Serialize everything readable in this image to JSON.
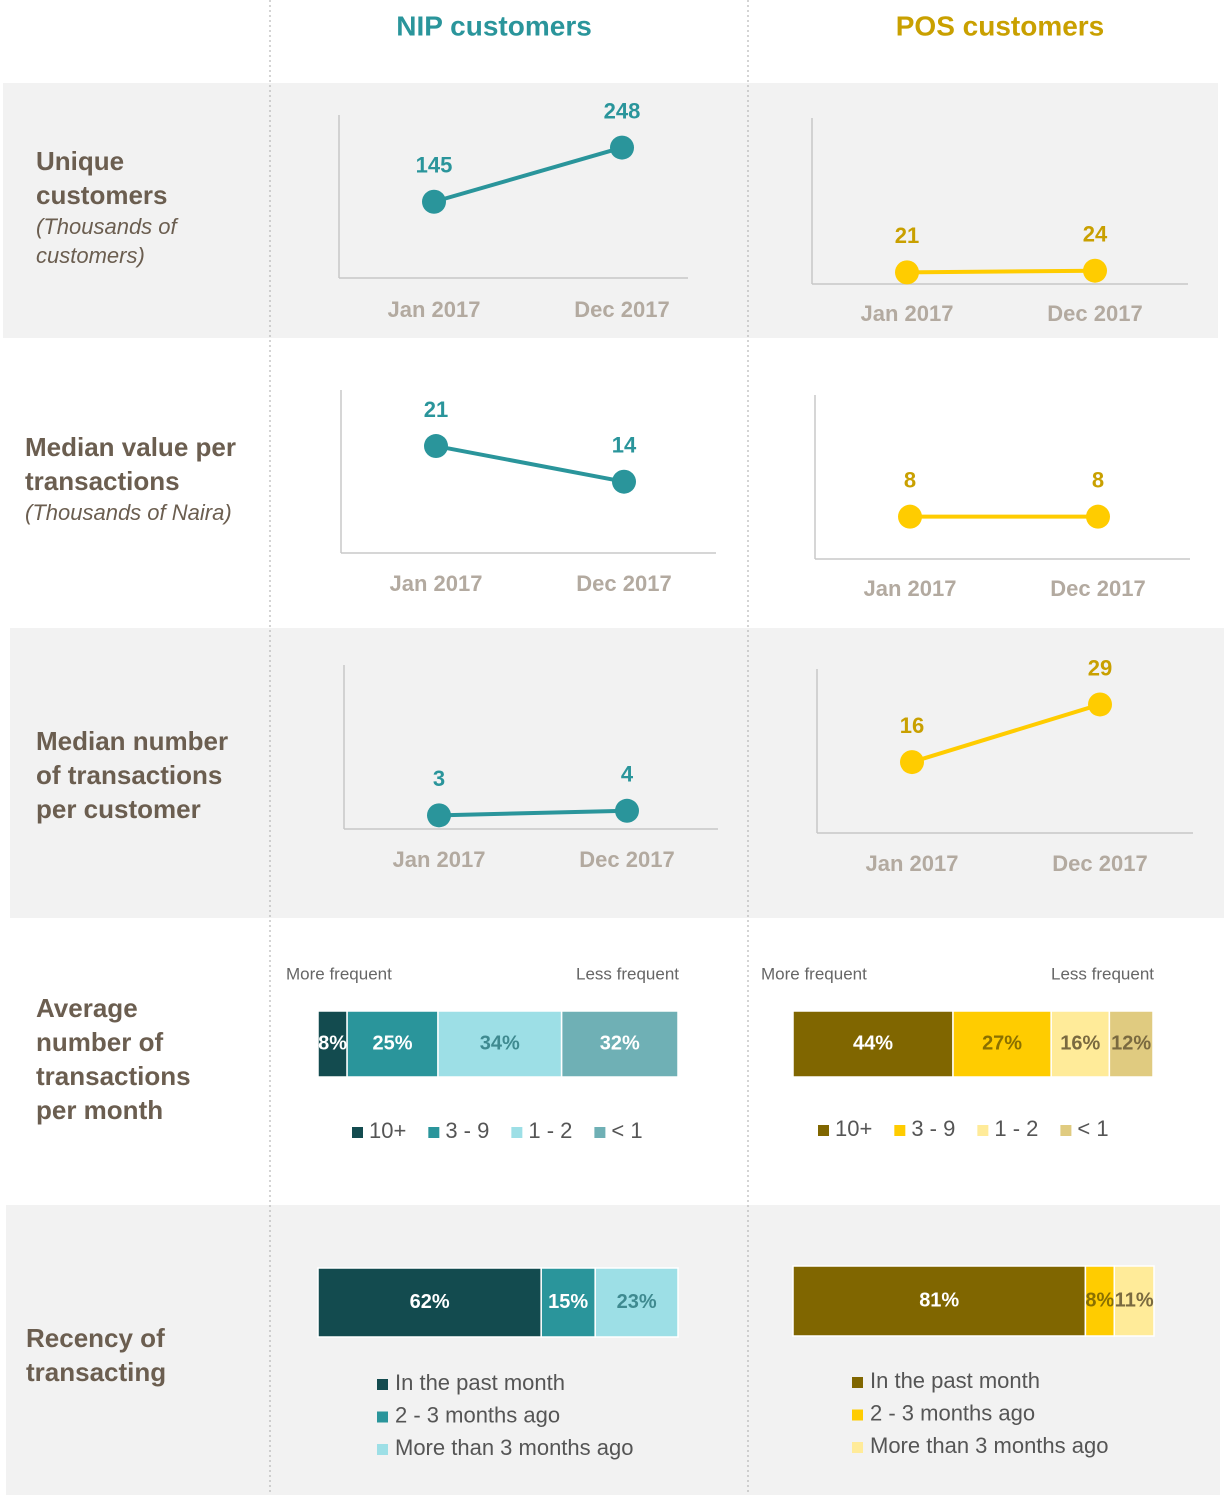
{
  "columns": [
    "NIP customers",
    "POS customers"
  ],
  "rows": [
    {
      "label": "Unique customers",
      "note": "(Thousands of customers)"
    },
    {
      "label": "Median value per transactions",
      "note": "(Thousands of Naira)"
    },
    {
      "label": "Median number of transactions per customer"
    },
    {
      "label": "Average number of transactions per month"
    },
    {
      "label": "Recency of transacting"
    }
  ],
  "chart_data": [
    {
      "type": "line",
      "categories": [
        "Jan 2017",
        "Dec 2017"
      ],
      "values": [
        145,
        248
      ],
      "color": "#2a959b",
      "label_color": "#2a959b",
      "ylim": [
        0,
        310
      ]
    },
    {
      "type": "line",
      "categories": [
        "Jan 2017",
        "Dec 2017"
      ],
      "values": [
        21,
        24
      ],
      "color": "#ffcc00",
      "label_color": "#c9a000",
      "ylim": [
        0,
        300
      ]
    },
    {
      "type": "line",
      "categories": [
        "Jan 2017",
        "Dec 2017"
      ],
      "values": [
        21,
        14
      ],
      "color": "#2a959b",
      "label_color": "#2a959b",
      "ylim": [
        0,
        32
      ]
    },
    {
      "type": "line",
      "categories": [
        "Jan 2017",
        "Dec 2017"
      ],
      "values": [
        8,
        8
      ],
      "color": "#ffcc00",
      "label_color": "#c9a000",
      "ylim": [
        0,
        31
      ]
    },
    {
      "type": "line",
      "categories": [
        "Jan 2017",
        "Dec 2017"
      ],
      "values": [
        3,
        4
      ],
      "color": "#2a959b",
      "label_color": "#2a959b",
      "ylim": [
        0,
        36
      ]
    },
    {
      "type": "line",
      "categories": [
        "Jan 2017",
        "Dec 2017"
      ],
      "values": [
        16,
        29
      ],
      "color": "#ffcc00",
      "label_color": "#c9a000",
      "ylim": [
        0,
        37
      ]
    },
    {
      "type": "stacked_bar",
      "annotations": [
        "More frequent",
        "Less frequent"
      ],
      "legend": "horizontal",
      "xlim": [
        0,
        99
      ],
      "series": [
        {
          "name": "10+",
          "color": "#134b4f",
          "label_color": "#ffffff",
          "values": [
            8
          ],
          "value_labels": [
            "8%"
          ]
        },
        {
          "name": "3 - 9",
          "color": "#2a959b",
          "label_color": "#ffffff",
          "values": [
            25
          ],
          "value_labels": [
            "25%"
          ]
        },
        {
          "name": "1 - 2",
          "color": "#9ddfe6",
          "label_color": "#3f8a90",
          "values": [
            34
          ],
          "value_labels": [
            "34%"
          ]
        },
        {
          "name": "< 1",
          "color": "#6fb0b5",
          "label_color": "#ffffff",
          "values": [
            32
          ],
          "value_labels": [
            "32%"
          ]
        }
      ]
    },
    {
      "type": "stacked_bar",
      "annotations": [
        "More frequent",
        "Less frequent"
      ],
      "legend": "horizontal",
      "xlim": [
        0,
        99
      ],
      "series": [
        {
          "name": "10+",
          "color": "#806600",
          "label_color": "#ffffff",
          "values": [
            44
          ],
          "value_labels": [
            "44%"
          ]
        },
        {
          "name": "3 - 9",
          "color": "#ffcc00",
          "label_color": "#8a7000",
          "values": [
            27
          ],
          "value_labels": [
            "27%"
          ]
        },
        {
          "name": "1 - 2",
          "color": "#ffeb99",
          "label_color": "#7a6a40",
          "values": [
            16
          ],
          "value_labels": [
            "16%"
          ]
        },
        {
          "name": "< 1",
          "color": "#e0cb80",
          "label_color": "#7a6a40",
          "values": [
            12
          ],
          "value_labels": [
            "12%"
          ]
        }
      ]
    },
    {
      "type": "stacked_bar",
      "legend": "vertical",
      "xlim": [
        0,
        100
      ],
      "series": [
        {
          "name": "In the past month",
          "color": "#134b4f",
          "label_color": "#ffffff",
          "values": [
            62
          ],
          "value_labels": [
            "62%"
          ]
        },
        {
          "name": "2 - 3 months ago",
          "color": "#2a959b",
          "label_color": "#ffffff",
          "values": [
            15
          ],
          "value_labels": [
            "15%"
          ]
        },
        {
          "name": "More than 3 months ago",
          "color": "#9ddfe6",
          "label_color": "#3f8a90",
          "values": [
            23
          ],
          "value_labels": [
            "23%"
          ]
        }
      ]
    },
    {
      "type": "stacked_bar",
      "legend": "vertical",
      "xlim": [
        0,
        100
      ],
      "series": [
        {
          "name": "In the past month",
          "color": "#806600",
          "label_color": "#ffffff",
          "values": [
            81
          ],
          "value_labels": [
            "81%"
          ]
        },
        {
          "name": "2 - 3 months ago",
          "color": "#ffcc00",
          "label_color": "#8a7000",
          "values": [
            8
          ],
          "value_labels": [
            "8%"
          ]
        },
        {
          "name": "More than 3 months ago",
          "color": "#ffeb99",
          "label_color": "#7a6a40",
          "values": [
            11
          ],
          "value_labels": [
            "11%"
          ]
        }
      ]
    }
  ]
}
